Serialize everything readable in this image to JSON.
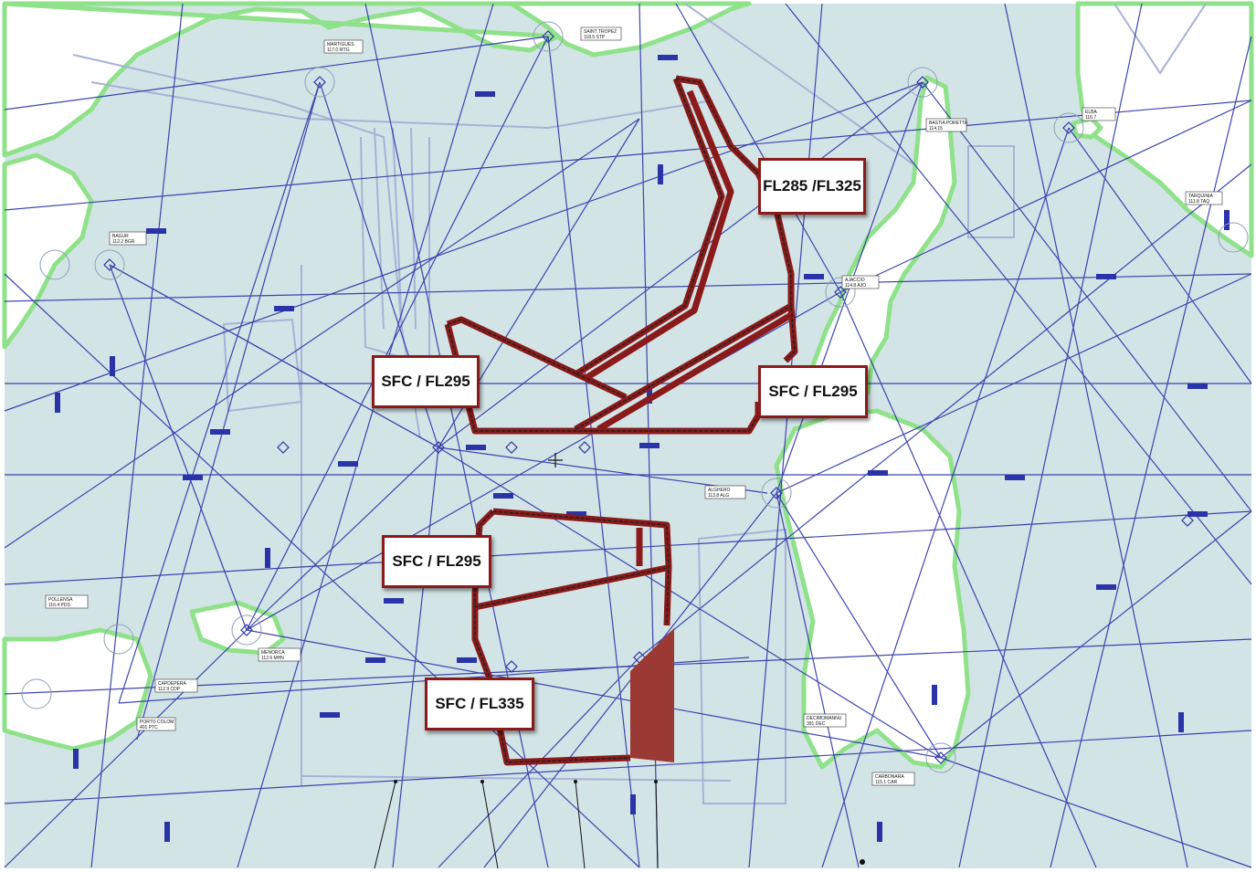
{
  "map": {
    "colors": {
      "sea": "#d3e4e6",
      "land": "#ffffff",
      "coast": "#8fe28a",
      "airway": "#2b33a8",
      "airspace_line": "#a7b2d6",
      "zone_outline": "#8b1a1a",
      "zone_fill": "#9b3a34"
    },
    "zones": [
      {
        "id": "zone-north-east",
        "label_lines": [
          "FL285 /",
          "FL325"
        ]
      },
      {
        "id": "zone-center-west",
        "label_lines": [
          "SFC / FL295"
        ]
      },
      {
        "id": "zone-center-east",
        "label_lines": [
          "SFC / FL295"
        ]
      },
      {
        "id": "zone-south-upper",
        "label_lines": [
          "SFC / FL295"
        ]
      },
      {
        "id": "zone-south-lower",
        "label_lines": [
          "SFC / FL335"
        ]
      }
    ],
    "navaids": [
      {
        "name": "MARTIGUES",
        "freq": "117.0 MTG"
      },
      {
        "name": "SAINT TROPEZ",
        "freq": "118.5 STP"
      },
      {
        "name": "BASTIA PORETTA",
        "freq": "114.15"
      },
      {
        "name": "ELBA",
        "freq": "116.7"
      },
      {
        "name": "TARQUINIA",
        "freq": "111.8 TAQ"
      },
      {
        "name": "BAGUR",
        "freq": "112.2 BGR"
      },
      {
        "name": "AJACCIO",
        "freq": "114.8 AJO"
      },
      {
        "name": "ALGHERO",
        "freq": "113.8 ALG"
      },
      {
        "name": "POLLENSA",
        "freq": "116.4 PDS"
      },
      {
        "name": "MENORCA",
        "freq": "112.6 MHN"
      },
      {
        "name": "CAPDEPERA",
        "freq": "112.9 CDP"
      },
      {
        "name": "PORTO COLOM",
        "freq": "401 PTC"
      },
      {
        "name": "DECIMOMANNU",
        "freq": "391 DEC"
      },
      {
        "name": "CARBONARA",
        "freq": "115.1 CAR"
      }
    ]
  }
}
